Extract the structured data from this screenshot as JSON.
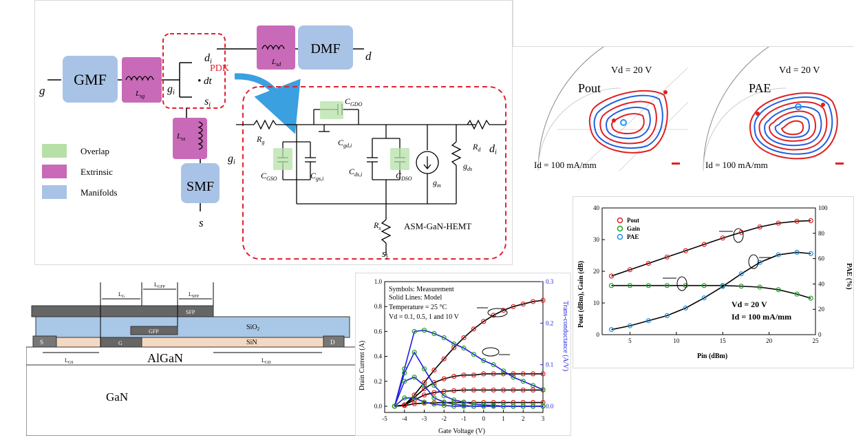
{
  "circuit": {
    "terminals": {
      "g": "g",
      "d": "d",
      "s": "s"
    },
    "blocks": {
      "gmf": "GMF",
      "dmf": "DMF",
      "smf": "SMF"
    },
    "inductors": {
      "lsg": "L",
      "lsg_sub": "sg",
      "lsd": "L",
      "lsd_sub": "sd",
      "lss": "L",
      "lss_sub": "ss"
    },
    "nodes": {
      "gi": "g",
      "di": "d",
      "si": "s",
      "dt": "dt",
      "i_sub": "i"
    },
    "pdk_label": "PDK",
    "legend": [
      {
        "label": "Overlap",
        "color": "#b6e0a8"
      },
      {
        "label": "Extrinsic",
        "color": "#c86ab8"
      },
      {
        "label": "Manifolds",
        "color": "#a9c3e6"
      }
    ],
    "hemt": {
      "title": "ASM-GaN-HEMT",
      "rg": "R",
      "rg_sub": "g",
      "rd": "R",
      "rd_sub": "d",
      "rs": "R",
      "rs_sub": "s",
      "cgdo": "C",
      "cgdo_sub": "GDO",
      "cgdi": "C",
      "cgdi_sub": "gd,i",
      "cgso": "C",
      "cgso_sub": "GSO",
      "cgsi": "C",
      "cgsi_sub": "gs,i",
      "cdsi": "C",
      "cdsi_sub": "ds,i",
      "cdso": "C",
      "cdso_sub": "DSO",
      "gm": "g",
      "gm_sub": "m",
      "gds": "g",
      "gds_sub": "ds"
    }
  },
  "loadpull": {
    "pout": {
      "title": "Pout",
      "vd": "Vd = 20 V",
      "id": "Id = 100 mA/mm"
    },
    "pae": {
      "title": "PAE",
      "vd": "Vd = 20 V",
      "id": "Id = 100 mA/mm"
    }
  },
  "cross_section": {
    "layers": {
      "sio2": "SiO",
      "sio2_sub": "2",
      "sin": "SiN",
      "algan": "AlGaN",
      "gan": "GaN",
      "sfp": "SFP",
      "gfp": "GFP",
      "g": "G",
      "s": "S",
      "d": "D"
    },
    "dims": {
      "lg": "L",
      "lg_sub": "G",
      "lgfp": "L",
      "lgfp_sub": "GFP",
      "lsfp": "L",
      "lsfp_sub": "SFP",
      "lgs": "L",
      "lgs_sub": "GS",
      "lgd": "L",
      "lgd_sub": "GD"
    }
  },
  "chart_data": [
    {
      "type": "line",
      "annotations": [
        "Symbols: Measurement",
        "Solid Lines: Model",
        "Temperature = 25 °C",
        "Vd = 0.1, 0.5, 1 and 10 V"
      ],
      "xlabel": "Gate Voltage (V)",
      "ylabel": "Drain Current (A)",
      "y2label": "Trans-conductance (A/V)",
      "xlim": [
        -5,
        3
      ],
      "ylim": [
        -0.05,
        1.0
      ],
      "y2lim": [
        -0.015,
        0.3
      ],
      "xticks": [
        "-5",
        "-4",
        "-3",
        "-2",
        "-1",
        "0",
        "1",
        "2",
        "3"
      ],
      "yticks": [
        "0.0",
        "0.2",
        "0.4",
        "0.6",
        "0.8",
        "1.0"
      ],
      "y2ticks": [
        "0.0",
        "0.1",
        "0.2",
        "0.3"
      ],
      "x": [
        -4.5,
        -4.0,
        -3.5,
        -3.0,
        -2.5,
        -2.0,
        -1.5,
        -1.0,
        -0.5,
        0.0,
        0.5,
        1.0,
        1.5,
        2.0,
        2.5,
        3.0
      ],
      "series": [
        {
          "axis": "left",
          "values": [
            0.0,
            0.01,
            0.09,
            0.19,
            0.29,
            0.38,
            0.47,
            0.55,
            0.62,
            0.68,
            0.73,
            0.77,
            0.8,
            0.82,
            0.84,
            0.85
          ],
          "color": "#000000"
        },
        {
          "axis": "left",
          "values": [
            0.0,
            0.01,
            0.07,
            0.14,
            0.19,
            0.22,
            0.24,
            0.25,
            0.25,
            0.26,
            0.26,
            0.26,
            0.26,
            0.26,
            0.26,
            0.26
          ],
          "color": "#000000"
        },
        {
          "axis": "left",
          "values": [
            0.0,
            0.01,
            0.05,
            0.09,
            0.11,
            0.12,
            0.125,
            0.13,
            0.13,
            0.13,
            0.13,
            0.13,
            0.13,
            0.13,
            0.13,
            0.13
          ],
          "color": "#000000"
        },
        {
          "axis": "left",
          "values": [
            0.0,
            0.005,
            0.02,
            0.025,
            0.028,
            0.03,
            0.03,
            0.03,
            0.03,
            0.03,
            0.03,
            0.03,
            0.03,
            0.03,
            0.03,
            0.03
          ],
          "color": "#000000"
        },
        {
          "axis": "right",
          "values": [
            0.0,
            0.09,
            0.18,
            0.183,
            0.175,
            0.165,
            0.15,
            0.14,
            0.125,
            0.11,
            0.1,
            0.085,
            0.07,
            0.06,
            0.05,
            0.04
          ],
          "color": "#1f1fe0"
        },
        {
          "axis": "right",
          "values": [
            0.0,
            0.08,
            0.13,
            0.09,
            0.05,
            0.025,
            0.015,
            0.01,
            0.005,
            0.003,
            0.002,
            0.0,
            0.0,
            0.0,
            0.0,
            0.0
          ],
          "color": "#1f1fe0"
        },
        {
          "axis": "right",
          "values": [
            0.0,
            0.06,
            0.07,
            0.05,
            0.02,
            0.01,
            0.005,
            0.002,
            0.0,
            0.0,
            0.0,
            0.0,
            0.0,
            0.0,
            0.0,
            0.0
          ],
          "color": "#1f1fe0"
        },
        {
          "axis": "right",
          "values": [
            0.0,
            0.02,
            0.02,
            0.01,
            0.005,
            0.002,
            0.0,
            0.0,
            0.0,
            0.0,
            0.0,
            0.0,
            0.0,
            0.0,
            0.0,
            0.0
          ],
          "color": "#1f1fe0"
        }
      ]
    },
    {
      "type": "line",
      "xlabel": "Pin (dBm)",
      "ylabel": "Pout (dBm), Gain (dB)",
      "y2label": "PAE (%)",
      "xlim": [
        2,
        25
      ],
      "ylim": [
        0,
        40
      ],
      "y2lim": [
        0,
        100
      ],
      "xticks": [
        "5",
        "10",
        "15",
        "20",
        "25"
      ],
      "yticks": [
        "0",
        "10",
        "20",
        "30",
        "40"
      ],
      "y2ticks": [
        "0",
        "20",
        "40",
        "60",
        "80",
        "100"
      ],
      "annotations": [
        "Vd = 20 V",
        "Id = 100 mA/mm"
      ],
      "x": [
        3,
        5,
        7,
        9,
        11,
        13,
        15,
        17,
        19,
        21,
        23,
        24.5
      ],
      "series": [
        {
          "name": "Pout",
          "axis": "left",
          "values": [
            18.5,
            20.5,
            22.5,
            24.5,
            26.5,
            28.5,
            30.5,
            32.3,
            34.0,
            35.2,
            35.8,
            36.0
          ],
          "color": "#e02020"
        },
        {
          "name": "Gain",
          "axis": "left",
          "values": [
            15.5,
            15.5,
            15.5,
            15.5,
            15.5,
            15.5,
            15.5,
            15.3,
            15.0,
            14.2,
            12.8,
            11.5
          ],
          "color": "#20a020"
        },
        {
          "name": "PAE",
          "axis": "right",
          "values": [
            4,
            7,
            11,
            15,
            21,
            29,
            38,
            48,
            57,
            63,
            65,
            64
          ],
          "color": "#2090e0"
        }
      ]
    }
  ]
}
